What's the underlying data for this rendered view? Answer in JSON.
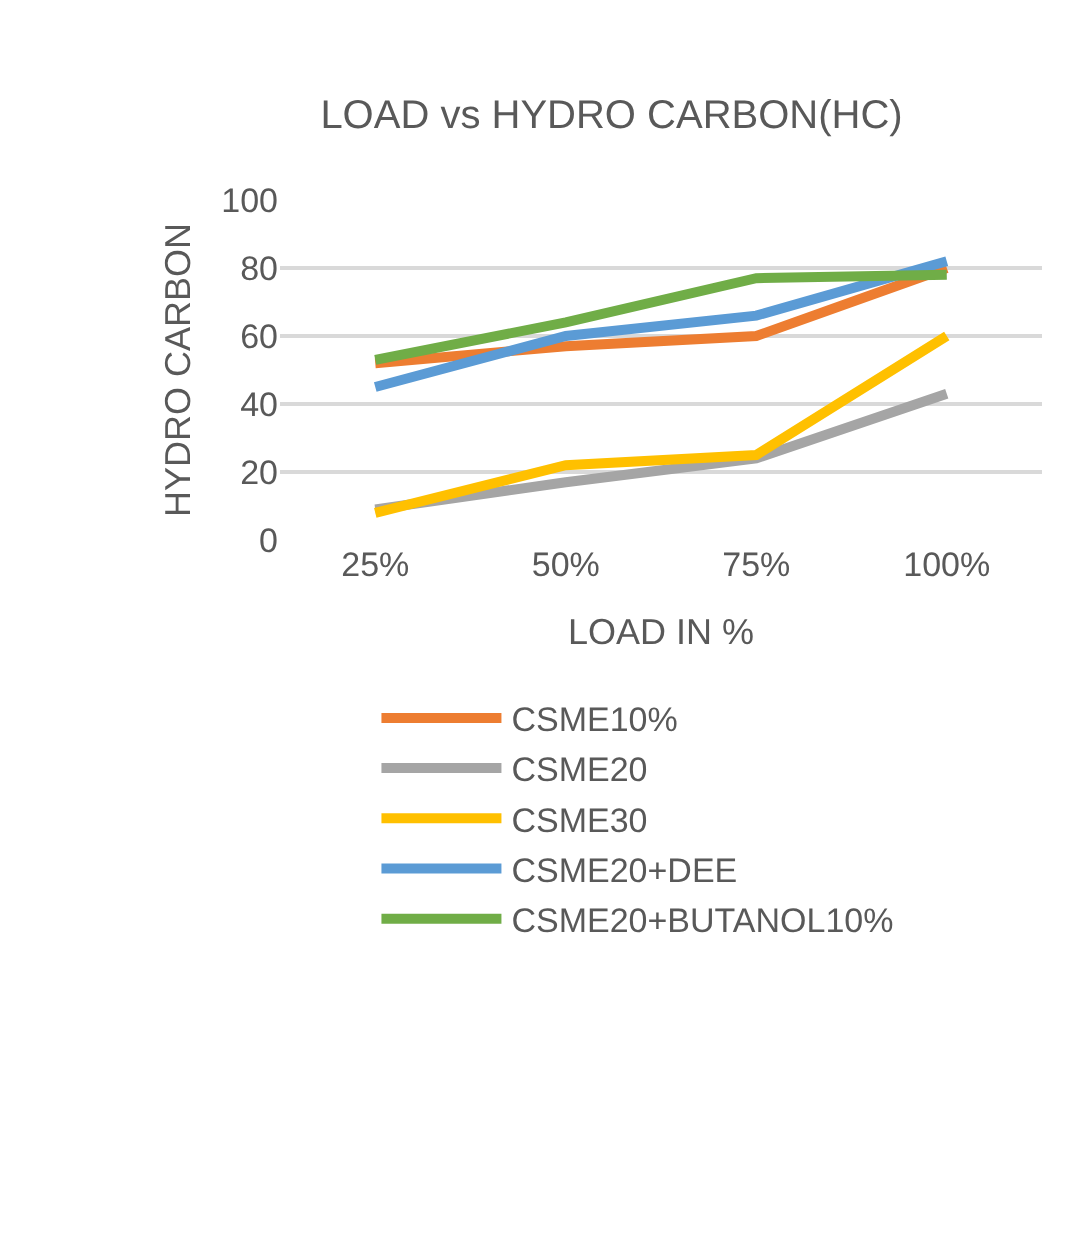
{
  "chart_data": {
    "type": "line",
    "title": "LOAD vs HYDRO CARBON(HC)",
    "xlabel": "LOAD IN %",
    "ylabel": "HYDRO CARBON",
    "categories": [
      "25%",
      "50%",
      "75%",
      "100%"
    ],
    "series": [
      {
        "name": "CSME10%",
        "color": "#ed7d31",
        "values": [
          52,
          57,
          60,
          80
        ]
      },
      {
        "name": "CSME20",
        "color": "#a5a5a5",
        "values": [
          9,
          17,
          24,
          43
        ]
      },
      {
        "name": "CSME30",
        "color": "#ffc000",
        "values": [
          8,
          22,
          25,
          60
        ]
      },
      {
        "name": "CSME20+DEE",
        "color": "#5b9bd5",
        "values": [
          45,
          60,
          66,
          82
        ]
      },
      {
        "name": "CSME20+BUTANOL10%",
        "color": "#70ad47",
        "values": [
          53,
          64,
          77,
          78
        ]
      }
    ],
    "ylim": [
      0,
      100
    ],
    "yticks": [
      0,
      20,
      40,
      60,
      80,
      100
    ],
    "grid": "y",
    "legend": "bottom",
    "marker": "none",
    "line_style": "solid"
  }
}
